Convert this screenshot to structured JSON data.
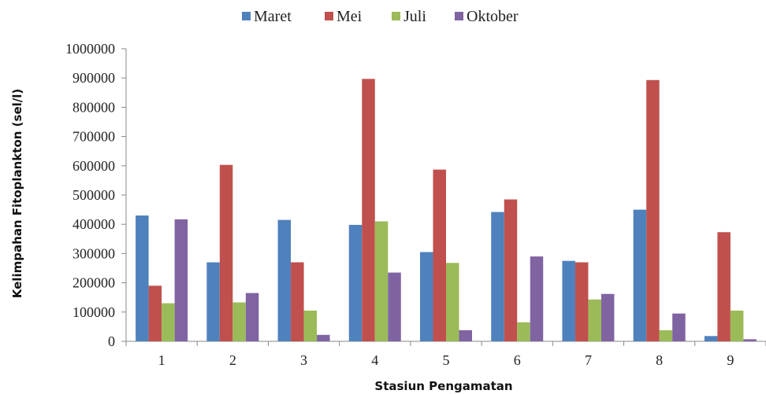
{
  "chart_data": {
    "type": "bar",
    "title": "",
    "xlabel": "Stasiun Pengamatan",
    "ylabel": "Kelimpahan Fitoplankton (sel/l)",
    "ylim": [
      0,
      1000000
    ],
    "yticks": [
      "0",
      "100000",
      "200000",
      "300000",
      "400000",
      "500000",
      "600000",
      "700000",
      "800000",
      "900000",
      "1000000"
    ],
    "categories": [
      "1",
      "2",
      "3",
      "4",
      "5",
      "6",
      "7",
      "8",
      "9"
    ],
    "grid": false,
    "legend_position": "top",
    "series": [
      {
        "name": "Maret",
        "color": "#4f81bd",
        "values": [
          430000,
          270000,
          415000,
          398000,
          305000,
          442000,
          275000,
          450000,
          18000
        ]
      },
      {
        "name": "Mei",
        "color": "#c0504d",
        "values": [
          190000,
          603000,
          270000,
          897000,
          587000,
          485000,
          270000,
          893000,
          373000
        ]
      },
      {
        "name": "Juli",
        "color": "#9bbb59",
        "values": [
          130000,
          133000,
          105000,
          410000,
          268000,
          65000,
          143000,
          38000,
          105000
        ]
      },
      {
        "name": "Oktober",
        "color": "#8064a2",
        "values": [
          417000,
          165000,
          22000,
          235000,
          38000,
          290000,
          162000,
          95000,
          7000
        ]
      }
    ]
  }
}
